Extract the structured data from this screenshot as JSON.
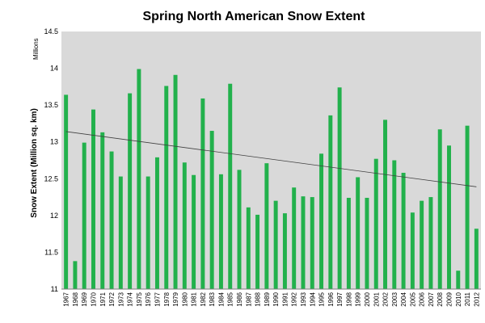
{
  "chart_data": {
    "type": "bar",
    "title": "Spring North American Snow Extent",
    "ylabel": "Snow Extent (Million sq. km)",
    "xlabel": "",
    "y_unit_multiplier": "Millions",
    "ylim": [
      11,
      14.5
    ],
    "yticks": [
      "11",
      "11.5",
      "12",
      "12.5",
      "13",
      "13.5",
      "14",
      "14.5"
    ],
    "grid": false,
    "bar_color": "#22b14c",
    "plot_background": "#d9d9d9",
    "trendline": {
      "type": "linear",
      "color": "#404040",
      "start": [
        1967,
        13.14
      ],
      "end": [
        2012,
        12.39
      ]
    },
    "categories": [
      "1967",
      "1968",
      "1969",
      "1970",
      "1971",
      "1972",
      "1973",
      "1974",
      "1975",
      "1976",
      "1977",
      "1978",
      "1979",
      "1980",
      "1981",
      "1982",
      "1983",
      "1984",
      "1985",
      "1986",
      "1987",
      "1988",
      "1989",
      "1990",
      "1991",
      "1992",
      "1993",
      "1994",
      "1995",
      "1996",
      "1997",
      "1998",
      "1999",
      "2000",
      "2001",
      "2002",
      "2003",
      "2004",
      "2005",
      "2006",
      "2007",
      "2008",
      "2009",
      "2010",
      "2011",
      "2012"
    ],
    "values": [
      13.64,
      11.38,
      12.99,
      13.44,
      13.13,
      12.87,
      12.53,
      13.66,
      13.99,
      12.53,
      12.79,
      13.76,
      13.91,
      12.72,
      12.55,
      13.59,
      13.15,
      12.56,
      13.79,
      12.62,
      12.11,
      12.01,
      12.71,
      12.2,
      12.03,
      12.38,
      12.26,
      12.25,
      12.84,
      13.36,
      13.74,
      12.24,
      12.52,
      12.24,
      12.77,
      13.3,
      12.75,
      12.58,
      12.04,
      12.2,
      12.25,
      13.17,
      12.95,
      11.25,
      13.22,
      11.82
    ]
  }
}
